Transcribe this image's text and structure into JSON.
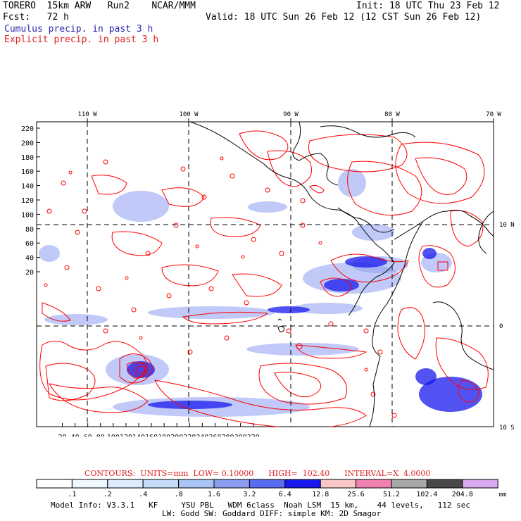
{
  "header": {
    "model": "TORERO  15km ARW   Run2    NCAR/MMM",
    "init": "Init: 18 UTC Thu 23 Feb 12",
    "fcst": "Fcst:   72 h",
    "valid": "Valid: 18 UTC Sun 26 Feb 12 (12 CST Sun 26 Feb 12)",
    "cumulus": "Cumulus precip. in past 3 h",
    "explicit": "Explicit precip. in past 3 h"
  },
  "map": {
    "top_lon_labels": [
      "110 W",
      "100 W",
      "90 W",
      "80 W",
      "70 W"
    ],
    "right_lat_labels": [
      "10 N",
      "0",
      "10 S"
    ],
    "y_ticks": [
      "220",
      "200",
      "180",
      "160",
      "140",
      "120",
      "100",
      "80",
      "60",
      "40",
      "20"
    ],
    "x_ticks": [
      "20",
      "40",
      "60",
      "80",
      "100",
      "120",
      "140",
      "160",
      "180",
      "200",
      "220",
      "240",
      "260",
      "280",
      "300",
      "320"
    ],
    "colors": {
      "contour": "#ff0000",
      "coast": "#000000"
    }
  },
  "legend": {
    "contours_line": "CONTOURS:  UNITS=mm  LOW= 0.10000      HIGH=  102.40      INTERVAL=X  4.0000",
    "levels": [
      ".1",
      ".2",
      ".4",
      ".8",
      "1.6",
      "3.2",
      "6.4",
      "12.8",
      "25.6",
      "51.2",
      "102.4",
      "204.8"
    ],
    "unit": "mm",
    "colors": [
      "#ffffff",
      "#f0f8ff",
      "#dcecfc",
      "#c4dcfa",
      "#a8c4f4",
      "#8c9cf0",
      "#5a6cf0",
      "#1818ee",
      "#f8c8c8",
      "#f080b0",
      "#a8a8a8",
      "#484848",
      "#d8a8f0"
    ]
  },
  "footer": {
    "line1": "Model Info: V3.3.1   KF     YSU PBL   WDM 6class  Noah LSM  15 km,    44 levels,   112 sec",
    "line2": "LW: Godd SW: Goddard DIFF: simple KM: 2D Smagor"
  }
}
